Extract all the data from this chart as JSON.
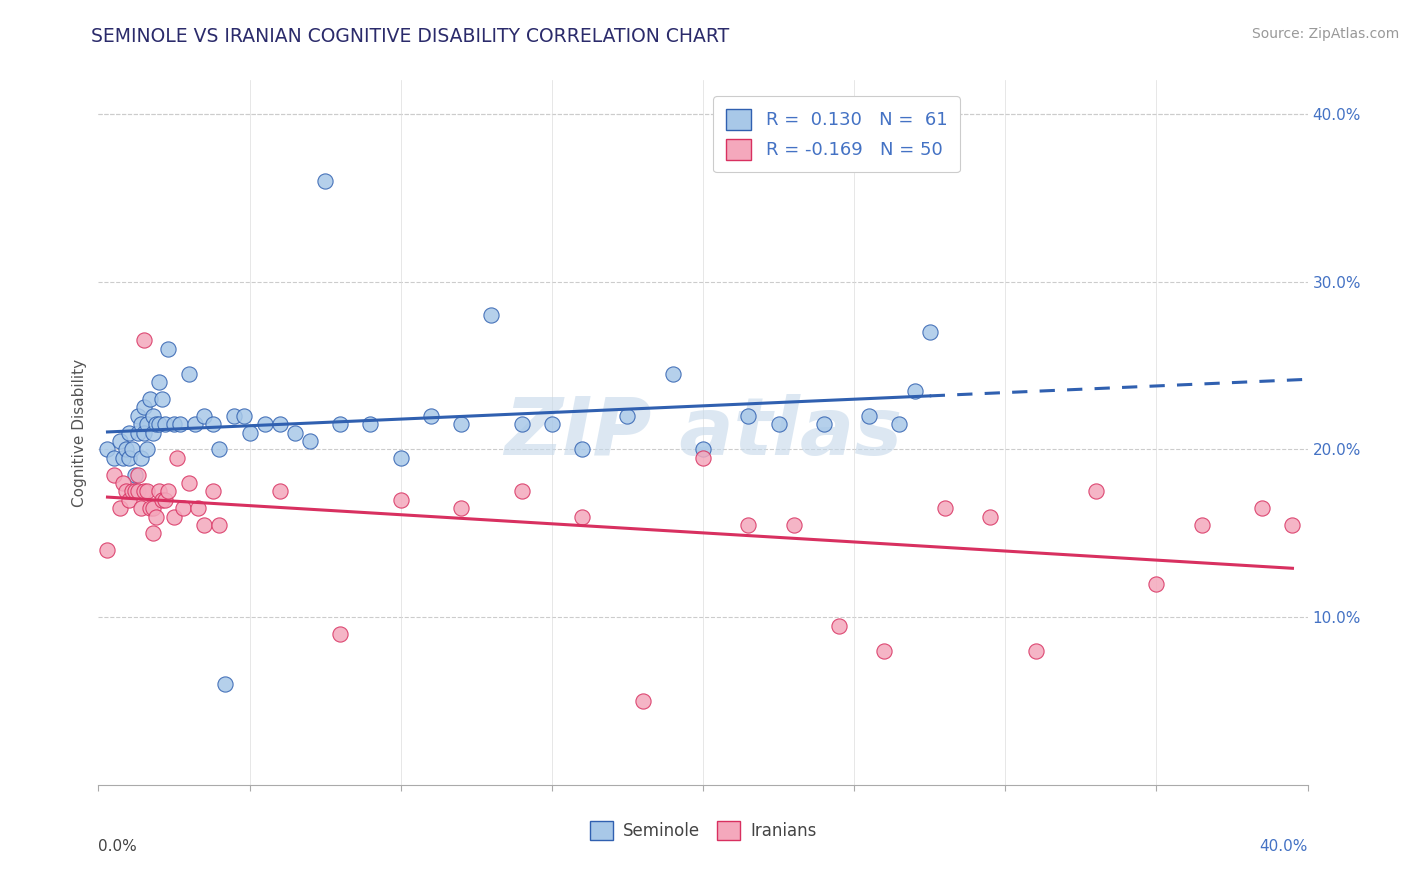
{
  "title": "SEMINOLE VS IRANIAN COGNITIVE DISABILITY CORRELATION CHART",
  "source": "Source: ZipAtlas.com",
  "ylabel": "Cognitive Disability",
  "xlim": [
    0.0,
    0.4
  ],
  "ylim": [
    0.0,
    0.42
  ],
  "yticks": [
    0.1,
    0.2,
    0.3,
    0.4
  ],
  "ytick_labels": [
    "10.0%",
    "20.0%",
    "30.0%",
    "40.0%"
  ],
  "xticks": [
    0.0,
    0.05,
    0.1,
    0.15,
    0.2,
    0.25,
    0.3,
    0.35,
    0.4
  ],
  "seminole_color": "#a8c8e8",
  "iranian_color": "#f4a8bc",
  "line_seminole_color": "#3060b0",
  "line_iranian_color": "#d83060",
  "background_color": "#ffffff",
  "seminole_x": [
    0.003,
    0.005,
    0.007,
    0.008,
    0.009,
    0.01,
    0.01,
    0.011,
    0.012,
    0.013,
    0.013,
    0.014,
    0.014,
    0.015,
    0.015,
    0.016,
    0.016,
    0.017,
    0.018,
    0.018,
    0.019,
    0.02,
    0.02,
    0.021,
    0.022,
    0.023,
    0.025,
    0.027,
    0.03,
    0.032,
    0.035,
    0.038,
    0.04,
    0.042,
    0.045,
    0.048,
    0.05,
    0.055,
    0.06,
    0.065,
    0.07,
    0.075,
    0.08,
    0.09,
    0.1,
    0.11,
    0.12,
    0.13,
    0.14,
    0.15,
    0.16,
    0.175,
    0.19,
    0.2,
    0.215,
    0.225,
    0.24,
    0.255,
    0.265,
    0.27,
    0.275
  ],
  "seminole_y": [
    0.2,
    0.195,
    0.205,
    0.195,
    0.2,
    0.21,
    0.195,
    0.2,
    0.185,
    0.21,
    0.22,
    0.195,
    0.215,
    0.21,
    0.225,
    0.2,
    0.215,
    0.23,
    0.21,
    0.22,
    0.215,
    0.215,
    0.24,
    0.23,
    0.215,
    0.26,
    0.215,
    0.215,
    0.245,
    0.215,
    0.22,
    0.215,
    0.2,
    0.06,
    0.22,
    0.22,
    0.21,
    0.215,
    0.215,
    0.21,
    0.205,
    0.36,
    0.215,
    0.215,
    0.195,
    0.22,
    0.215,
    0.28,
    0.215,
    0.215,
    0.2,
    0.22,
    0.245,
    0.2,
    0.22,
    0.215,
    0.215,
    0.22,
    0.215,
    0.235,
    0.27
  ],
  "iranian_x": [
    0.003,
    0.005,
    0.007,
    0.008,
    0.009,
    0.01,
    0.011,
    0.012,
    0.013,
    0.013,
    0.014,
    0.015,
    0.015,
    0.016,
    0.017,
    0.018,
    0.018,
    0.019,
    0.02,
    0.021,
    0.022,
    0.023,
    0.025,
    0.026,
    0.028,
    0.03,
    0.033,
    0.035,
    0.038,
    0.04,
    0.06,
    0.08,
    0.1,
    0.12,
    0.14,
    0.16,
    0.18,
    0.2,
    0.215,
    0.23,
    0.245,
    0.26,
    0.28,
    0.295,
    0.31,
    0.33,
    0.35,
    0.365,
    0.385,
    0.395
  ],
  "iranian_y": [
    0.14,
    0.185,
    0.165,
    0.18,
    0.175,
    0.17,
    0.175,
    0.175,
    0.175,
    0.185,
    0.165,
    0.175,
    0.265,
    0.175,
    0.165,
    0.15,
    0.165,
    0.16,
    0.175,
    0.17,
    0.17,
    0.175,
    0.16,
    0.195,
    0.165,
    0.18,
    0.165,
    0.155,
    0.175,
    0.155,
    0.175,
    0.09,
    0.17,
    0.165,
    0.175,
    0.16,
    0.05,
    0.195,
    0.155,
    0.155,
    0.095,
    0.08,
    0.165,
    0.16,
    0.08,
    0.175,
    0.12,
    0.155,
    0.165,
    0.155
  ]
}
